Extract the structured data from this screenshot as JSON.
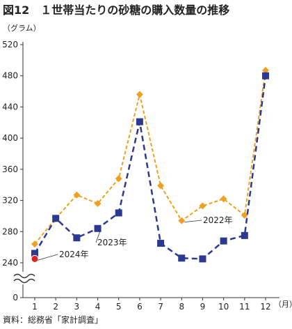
{
  "chart_data": {
    "type": "line",
    "title": "図12　１世帯当たりの砂糖の購入数量の推移",
    "y_label": "（グラム）",
    "x_label": "（月）",
    "source": "資料：総務省「家計調査」",
    "categories": [
      "1",
      "2",
      "3",
      "4",
      "5",
      "6",
      "7",
      "8",
      "9",
      "10",
      "11",
      "12"
    ],
    "series": [
      {
        "name": "2022年",
        "color": "#f0a020",
        "marker": "diamond",
        "values": [
          264,
          297,
          327,
          316,
          348,
          456,
          339,
          294,
          313,
          322,
          301,
          487
        ]
      },
      {
        "name": "2023年",
        "color": "#2b3990",
        "marker": "square",
        "values": [
          252,
          297,
          272,
          284,
          304,
          421,
          265,
          246,
          245,
          268,
          275,
          480
        ]
      },
      {
        "name": "2024年",
        "color": "#e02020",
        "marker": "circle",
        "values": [
          245,
          null,
          null,
          null,
          null,
          null,
          null,
          null,
          null,
          null,
          null,
          null
        ]
      }
    ],
    "ylim": [
      0,
      520
    ],
    "yticks": [
      0,
      240,
      280,
      320,
      360,
      400,
      440,
      480,
      520
    ],
    "axis_break": true
  }
}
